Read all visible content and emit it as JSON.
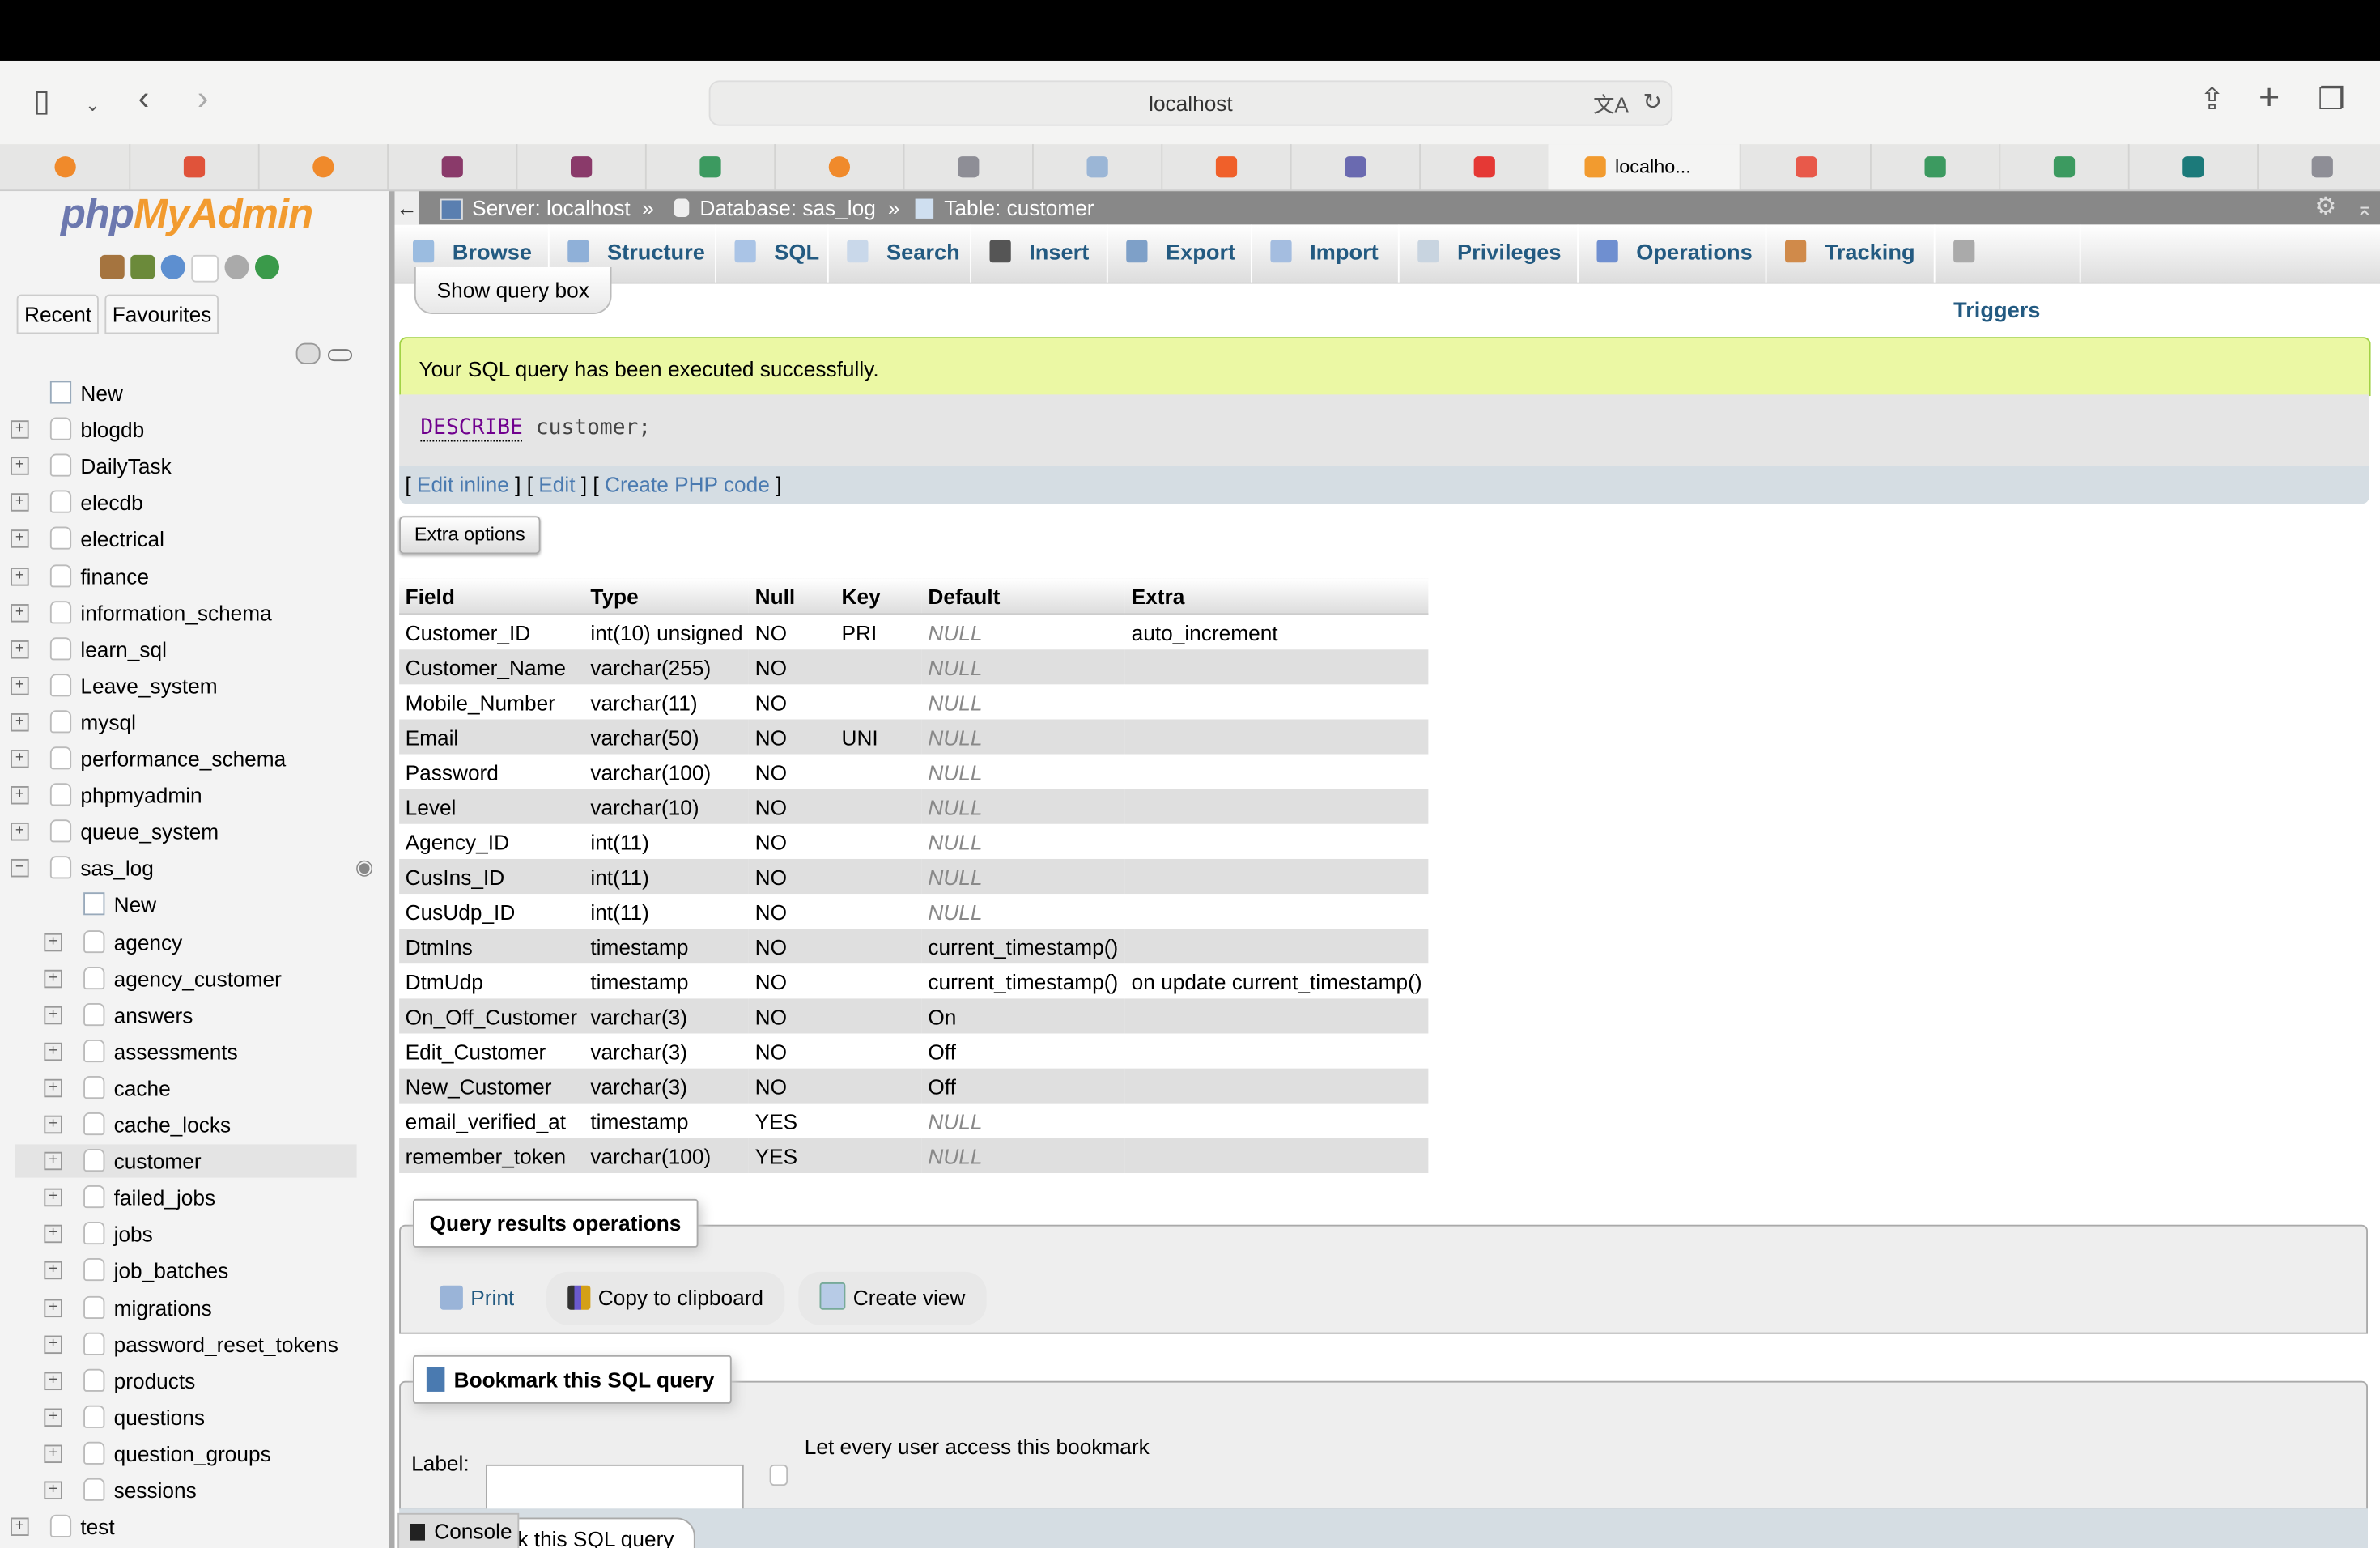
{
  "browser": {
    "url": "localhost",
    "tabs": [
      {
        "icon": "orange-seal-icon",
        "color": "#f08a2b"
      },
      {
        "icon": "red-logo-icon",
        "color": "#e0533a"
      },
      {
        "icon": "orange-seal-icon",
        "color": "#f08a2b"
      },
      {
        "icon": "saslog-icon",
        "color": "#8a3a6a"
      },
      {
        "icon": "saslog-icon",
        "color": "#8a3a6a"
      },
      {
        "icon": "w3schools-icon",
        "color": "#3c9a60"
      },
      {
        "icon": "orange-seal-icon",
        "color": "#f08a2b"
      },
      {
        "icon": "g-icon",
        "color": "#8e8e96"
      },
      {
        "icon": "document-icon",
        "color": "#9bb6d6"
      },
      {
        "icon": "stack-icon",
        "color": "#f0602a"
      },
      {
        "icon": "thn-icon",
        "color": "#6a6ab0"
      },
      {
        "icon": "youtube-icon",
        "color": "#e53935"
      },
      {
        "icon": "phpmyadmin-icon",
        "color": "#f29b2f",
        "label": "localho...",
        "active": true
      },
      {
        "icon": "laravel-icon",
        "color": "#e8594a"
      },
      {
        "icon": "w3schools-icon",
        "color": "#3c9a60"
      },
      {
        "icon": "w3schools-icon",
        "color": "#3c9a60"
      },
      {
        "icon": "sharepoint-icon",
        "color": "#1c7a7a"
      },
      {
        "icon": "one-icon",
        "color": "#8e8e96"
      }
    ]
  },
  "sidebar": {
    "logo": {
      "php": "php",
      "myadmin": "MyAdmin"
    },
    "recent": "Recent",
    "favourites": "Favourites",
    "databases": [
      {
        "label": "New",
        "type": "new"
      },
      {
        "label": "blogdb"
      },
      {
        "label": "DailyTask"
      },
      {
        "label": "elecdb"
      },
      {
        "label": "electrical"
      },
      {
        "label": "finance"
      },
      {
        "label": "information_schema"
      },
      {
        "label": "learn_sql"
      },
      {
        "label": "Leave_system"
      },
      {
        "label": "mysql"
      },
      {
        "label": "performance_schema"
      },
      {
        "label": "phpmyadmin"
      },
      {
        "label": "queue_system"
      },
      {
        "label": "sas_log",
        "expanded": true
      }
    ],
    "sas_log_tables": [
      {
        "label": "New",
        "type": "new"
      },
      {
        "label": "agency"
      },
      {
        "label": "agency_customer"
      },
      {
        "label": "answers"
      },
      {
        "label": "assessments"
      },
      {
        "label": "cache"
      },
      {
        "label": "cache_locks"
      },
      {
        "label": "customer",
        "selected": true
      },
      {
        "label": "failed_jobs"
      },
      {
        "label": "jobs"
      },
      {
        "label": "job_batches"
      },
      {
        "label": "migrations"
      },
      {
        "label": "password_reset_tokens"
      },
      {
        "label": "products"
      },
      {
        "label": "questions"
      },
      {
        "label": "question_groups"
      },
      {
        "label": "sessions"
      }
    ],
    "after": [
      {
        "label": "test"
      }
    ]
  },
  "breadcrumb": {
    "server": "Server: localhost",
    "database": "Database: sas_log",
    "table": "Table: customer",
    "sep": "»"
  },
  "menu": [
    "Browse",
    "Structure",
    "SQL",
    "Search",
    "Insert",
    "Export",
    "Import",
    "Privileges",
    "Operations",
    "Tracking",
    "Triggers"
  ],
  "show_query_box": "Show query box",
  "success_message": "Your SQL query has been executed successfully.",
  "sql": {
    "keyword": "DESCRIBE",
    "rest": "customer;"
  },
  "sql_links": {
    "edit_inline": "Edit inline",
    "edit": "Edit",
    "create_php": "Create PHP code"
  },
  "extra_options": "Extra options",
  "table": {
    "headers": [
      "Field",
      "Type",
      "Null",
      "Key",
      "Default",
      "Extra"
    ],
    "rows": [
      [
        "Customer_ID",
        "int(10) unsigned",
        "NO",
        "PRI",
        "NULL",
        "auto_increment"
      ],
      [
        "Customer_Name",
        "varchar(255)",
        "NO",
        "",
        "NULL",
        ""
      ],
      [
        "Mobile_Number",
        "varchar(11)",
        "NO",
        "",
        "NULL",
        ""
      ],
      [
        "Email",
        "varchar(50)",
        "NO",
        "UNI",
        "NULL",
        ""
      ],
      [
        "Password",
        "varchar(100)",
        "NO",
        "",
        "NULL",
        ""
      ],
      [
        "Level",
        "varchar(10)",
        "NO",
        "",
        "NULL",
        ""
      ],
      [
        "Agency_ID",
        "int(11)",
        "NO",
        "",
        "NULL",
        ""
      ],
      [
        "CusIns_ID",
        "int(11)",
        "NO",
        "",
        "NULL",
        ""
      ],
      [
        "CusUdp_ID",
        "int(11)",
        "NO",
        "",
        "NULL",
        ""
      ],
      [
        "DtmIns",
        "timestamp",
        "NO",
        "",
        "current_timestamp()",
        ""
      ],
      [
        "DtmUdp",
        "timestamp",
        "NO",
        "",
        "current_timestamp()",
        "on update current_timestamp()"
      ],
      [
        "On_Off_Customer",
        "varchar(3)",
        "NO",
        "",
        "On",
        ""
      ],
      [
        "Edit_Customer",
        "varchar(3)",
        "NO",
        "",
        "Off",
        ""
      ],
      [
        "New_Customer",
        "varchar(3)",
        "NO",
        "",
        "Off",
        ""
      ],
      [
        "email_verified_at",
        "timestamp",
        "YES",
        "",
        "NULL",
        ""
      ],
      [
        "remember_token",
        "varchar(100)",
        "YES",
        "",
        "NULL",
        ""
      ]
    ]
  },
  "query_ops": {
    "legend": "Query results operations",
    "print": "Print",
    "copy": "Copy to clipboard",
    "create_view": "Create view"
  },
  "bookmark": {
    "legend": "Bookmark this SQL query",
    "label": "Label:",
    "label_value": "",
    "share": "Let every user access this bookmark",
    "partial": "k this SQL query"
  },
  "console": "Console"
}
